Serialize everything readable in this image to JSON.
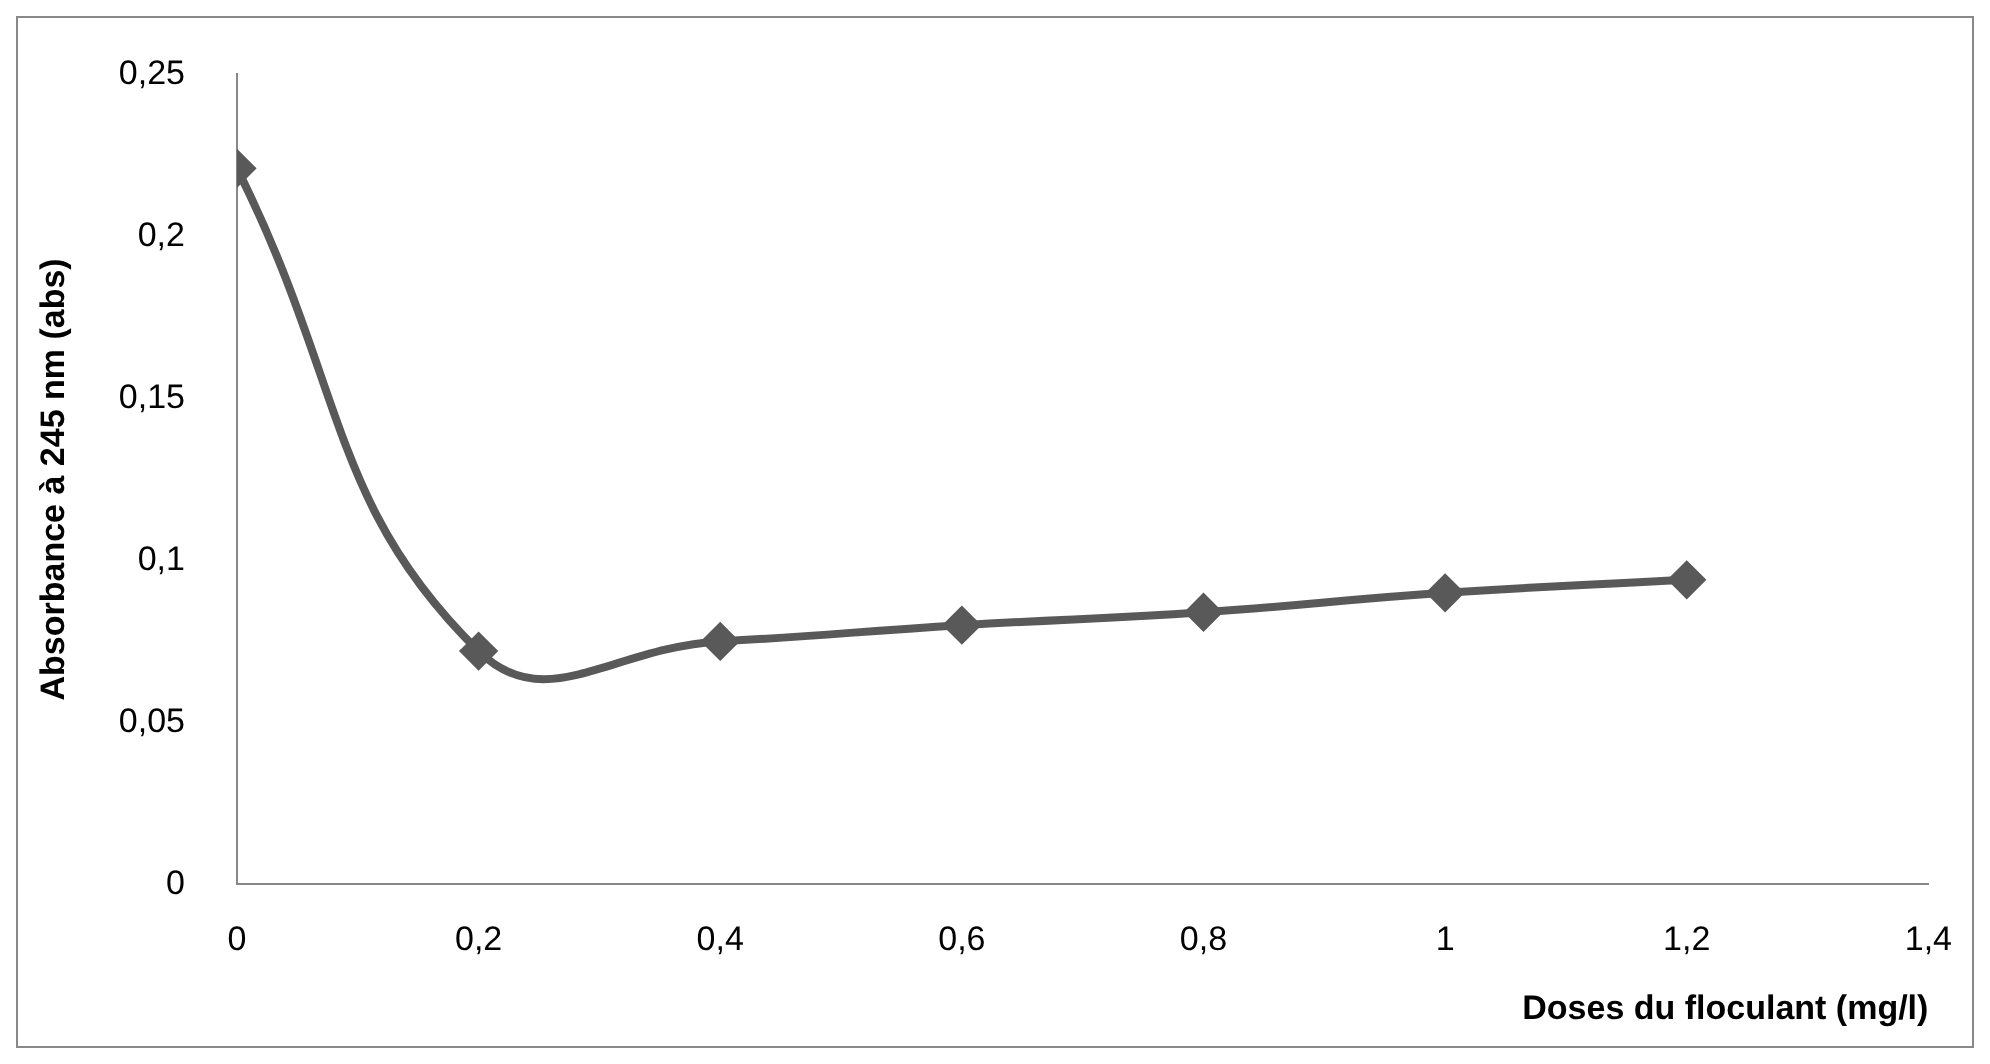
{
  "chart_data": {
    "type": "line",
    "xlabel": "Doses du floculant (mg/l)",
    "ylabel": "Absorbance à 245 nm (abs)",
    "x": [
      0,
      0.2,
      0.4,
      0.6,
      0.8,
      1,
      1.2
    ],
    "series": [
      {
        "color": "#595959",
        "values": [
          0.221,
          0.072,
          0.075,
          0.08,
          0.084,
          0.09,
          0.094
        ]
      }
    ],
    "xlim": [
      0,
      1.4
    ],
    "xticks": [
      0,
      {
        "value": 0.2,
        "label": "0,2"
      },
      {
        "value": 0.4,
        "label": "0,4"
      },
      {
        "value": 0.6,
        "label": "0,6"
      },
      {
        "value": 0.8,
        "label": "0,8"
      },
      1,
      {
        "value": 1.2,
        "label": "1,2"
      },
      {
        "value": 1.4,
        "label": "1,4"
      }
    ],
    "ylim": [
      0,
      0.25
    ],
    "yticks": [
      0,
      {
        "value": 0.05,
        "label": "0,05"
      },
      {
        "value": 0.1,
        "label": "0,1"
      },
      {
        "value": 0.15,
        "label": "0,15"
      },
      {
        "value": 0.2,
        "label": "0,2"
      },
      {
        "value": 0.25,
        "label": "0,25"
      }
    ],
    "grid": false,
    "legend": false,
    "marker": "diamond",
    "line_style": "solid"
  }
}
